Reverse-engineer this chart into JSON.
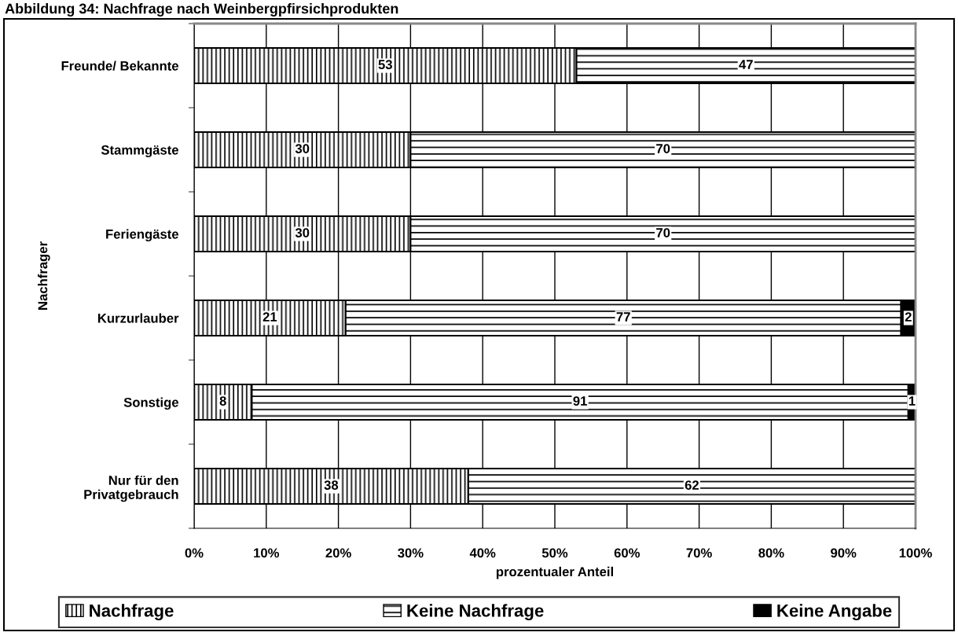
{
  "chart_data": {
    "type": "bar",
    "orientation": "horizontal",
    "stacked": true,
    "title": "Abbildung 34: Nachfrage nach Weinbergpfirsichprodukten",
    "xlabel": "prozentualer Anteil",
    "ylabel": "Nachfrager",
    "categories": [
      "Freunde/ Bekannte",
      "Stammgäste",
      "Feriengäste",
      "Kurzurlauber",
      "Sonstige",
      "Nur für den\nPrivatgebrauch"
    ],
    "series": [
      {
        "name": "Nachfrage",
        "color": "#000000",
        "values": [
          53,
          30,
          30,
          21,
          8,
          38
        ],
        "value_labels": [
          "53",
          "30",
          "30",
          "21",
          "8",
          "38"
        ]
      },
      {
        "name": "Keine Nachfrage",
        "color": "#000000",
        "values": [
          47,
          70,
          70,
          77,
          91,
          62
        ],
        "value_labels": [
          "47",
          "70",
          "70",
          "77",
          "91",
          "62"
        ]
      },
      {
        "name": "Keine Angabe",
        "color": "#000000",
        "values": [
          0,
          0,
          0,
          2,
          1,
          0
        ],
        "value_labels": [
          null,
          null,
          null,
          "2",
          "1",
          null
        ]
      }
    ],
    "xlim": [
      0,
      100
    ],
    "xticks": [
      {
        "value": 0,
        "label": "0%"
      },
      {
        "value": 10,
        "label": "10%"
      },
      {
        "value": 20,
        "label": "20%"
      },
      {
        "value": 30,
        "label": "30%"
      },
      {
        "value": 40,
        "label": "40%"
      },
      {
        "value": 50,
        "label": "50%"
      },
      {
        "value": 60,
        "label": "60%"
      },
      {
        "value": 70,
        "label": "70%"
      },
      {
        "value": 80,
        "label": "80%"
      },
      {
        "value": 90,
        "label": "90%"
      },
      {
        "value": 100,
        "label": "100%"
      }
    ],
    "grid": "x",
    "legend": "bottom"
  }
}
